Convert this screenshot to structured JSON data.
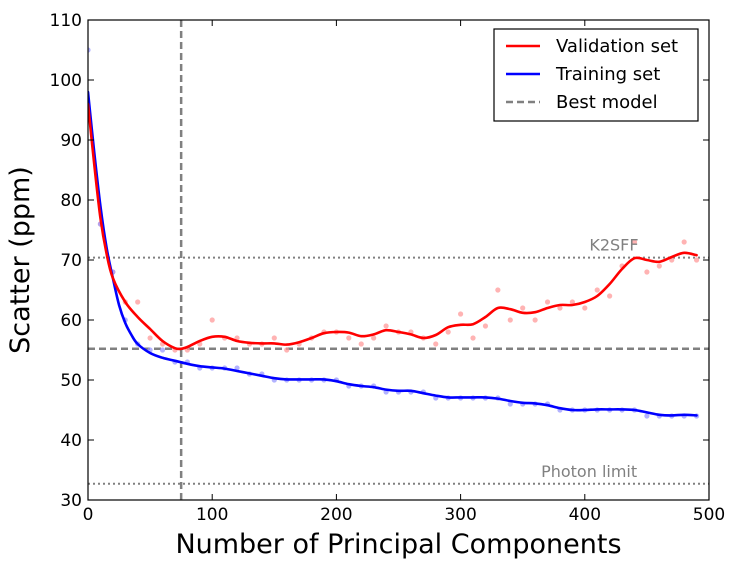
{
  "chart_data": {
    "type": "line",
    "xlabel": "Number of Principal Components",
    "ylabel": "Scatter (ppm)",
    "xlim": [
      0,
      500
    ],
    "ylim": [
      30,
      110
    ],
    "x_ticks": [
      0,
      100,
      200,
      300,
      400,
      500
    ],
    "y_ticks": [
      30,
      40,
      50,
      60,
      70,
      80,
      90,
      100,
      110
    ],
    "grid": false,
    "legend_position": "top-right",
    "series": [
      {
        "name": "Validation set",
        "color": "#ff0000",
        "smooth": {
          "x": [
            0,
            5,
            10,
            15,
            20,
            30,
            40,
            50,
            60,
            70,
            75,
            80,
            90,
            100,
            110,
            120,
            130,
            140,
            150,
            160,
            170,
            180,
            190,
            200,
            210,
            220,
            230,
            240,
            250,
            260,
            270,
            280,
            290,
            300,
            310,
            320,
            330,
            340,
            350,
            360,
            370,
            380,
            390,
            400,
            410,
            420,
            430,
            440,
            450,
            460,
            470,
            480,
            490
          ],
          "y": [
            96,
            86,
            77,
            71,
            67,
            63,
            60.5,
            58.5,
            56.5,
            55.3,
            55.2,
            55.5,
            56.5,
            57.2,
            57.2,
            56.5,
            56.2,
            56.1,
            56.1,
            55.9,
            56.3,
            57,
            57.8,
            58,
            57.9,
            57.3,
            57.6,
            58.3,
            58,
            57.6,
            57,
            57.5,
            58.8,
            59.2,
            59.3,
            60.5,
            62,
            61.8,
            61.2,
            61.3,
            62,
            62.5,
            62.5,
            63,
            64,
            66,
            68.5,
            70.3,
            70,
            69.7,
            70.5,
            71.2,
            70.8
          ]
        },
        "points": {
          "x": [
            0,
            10,
            20,
            30,
            40,
            50,
            60,
            70,
            80,
            90,
            100,
            110,
            120,
            130,
            140,
            150,
            160,
            170,
            180,
            190,
            200,
            210,
            220,
            230,
            240,
            250,
            260,
            270,
            280,
            290,
            300,
            310,
            320,
            330,
            340,
            350,
            360,
            370,
            380,
            390,
            400,
            410,
            420,
            430,
            440,
            450,
            460,
            470,
            480,
            490
          ],
          "y": [
            95,
            76,
            68,
            63,
            63,
            57,
            56,
            55,
            55,
            56,
            60,
            57,
            57,
            56,
            56,
            57,
            55,
            56,
            57,
            58,
            58,
            57,
            56,
            57,
            59,
            58,
            58,
            57,
            56,
            58,
            61,
            57,
            59,
            65,
            60,
            62,
            60,
            63,
            62,
            63,
            62,
            65,
            64,
            69,
            73,
            68,
            69,
            70,
            73,
            70
          ]
        }
      },
      {
        "name": "Training set",
        "color": "#0000ff",
        "smooth": {
          "x": [
            0,
            5,
            10,
            15,
            20,
            25,
            30,
            35,
            40,
            50,
            60,
            70,
            80,
            90,
            100,
            110,
            120,
            130,
            140,
            150,
            160,
            170,
            180,
            190,
            200,
            210,
            220,
            230,
            240,
            250,
            260,
            270,
            280,
            290,
            300,
            310,
            320,
            330,
            340,
            350,
            360,
            370,
            380,
            390,
            400,
            410,
            420,
            430,
            440,
            450,
            460,
            470,
            480,
            490
          ],
          "y": [
            98,
            88,
            79,
            72,
            67,
            62.5,
            59.5,
            57.5,
            56,
            54.5,
            53.7,
            53.2,
            52.7,
            52.3,
            52.1,
            51.9,
            51.5,
            51.1,
            50.7,
            50.3,
            50.1,
            50.1,
            50.1,
            50.1,
            49.8,
            49.3,
            49,
            48.8,
            48.4,
            48.2,
            48.2,
            47.8,
            47.4,
            47.1,
            47.1,
            47.1,
            47.1,
            46.9,
            46.5,
            46.2,
            46.1,
            45.8,
            45.3,
            45,
            45,
            45.1,
            45.1,
            45.1,
            45,
            44.6,
            44.2,
            44.1,
            44.2,
            44.1
          ]
        },
        "points": {
          "x": [
            0,
            10,
            20,
            30,
            40,
            50,
            60,
            70,
            80,
            90,
            100,
            110,
            120,
            130,
            140,
            150,
            160,
            170,
            180,
            190,
            200,
            210,
            220,
            230,
            240,
            250,
            260,
            270,
            280,
            290,
            300,
            310,
            320,
            330,
            340,
            350,
            360,
            370,
            380,
            390,
            400,
            410,
            420,
            430,
            440,
            450,
            460,
            470,
            480,
            490
          ],
          "y": [
            105,
            76,
            68,
            60,
            56,
            55,
            55,
            53,
            53,
            52,
            52,
            52,
            52,
            51,
            51,
            50,
            50,
            50,
            50,
            50,
            50,
            49,
            49,
            49,
            48,
            48,
            48,
            48,
            47,
            47,
            47,
            47,
            47,
            47,
            46,
            46,
            46,
            46,
            45,
            45,
            45,
            45,
            45,
            45,
            45,
            44,
            44,
            44,
            44,
            44
          ]
        }
      }
    ],
    "reference_lines": [
      {
        "name": "Best model",
        "orientation": "vertical",
        "x": 75,
        "color": "#808080",
        "style": "dashed",
        "in_legend": true
      },
      {
        "name": "Best model",
        "orientation": "horizontal",
        "y": 55.2,
        "color": "#808080",
        "style": "dashed",
        "in_legend": false
      },
      {
        "label": "K2SFF",
        "orientation": "horizontal",
        "y": 70.4,
        "color": "#808080",
        "style": "dotted",
        "label_x": 380
      },
      {
        "label": "Photon limit",
        "orientation": "horizontal",
        "y": 32.7,
        "color": "#808080",
        "style": "dotted",
        "label_x": 360
      }
    ],
    "legend": [
      {
        "label": "Validation set",
        "color": "#ff0000",
        "style": "solid"
      },
      {
        "label": "Training set",
        "color": "#0000ff",
        "style": "solid"
      },
      {
        "label": "Best model",
        "color": "#808080",
        "style": "dashed"
      }
    ]
  }
}
